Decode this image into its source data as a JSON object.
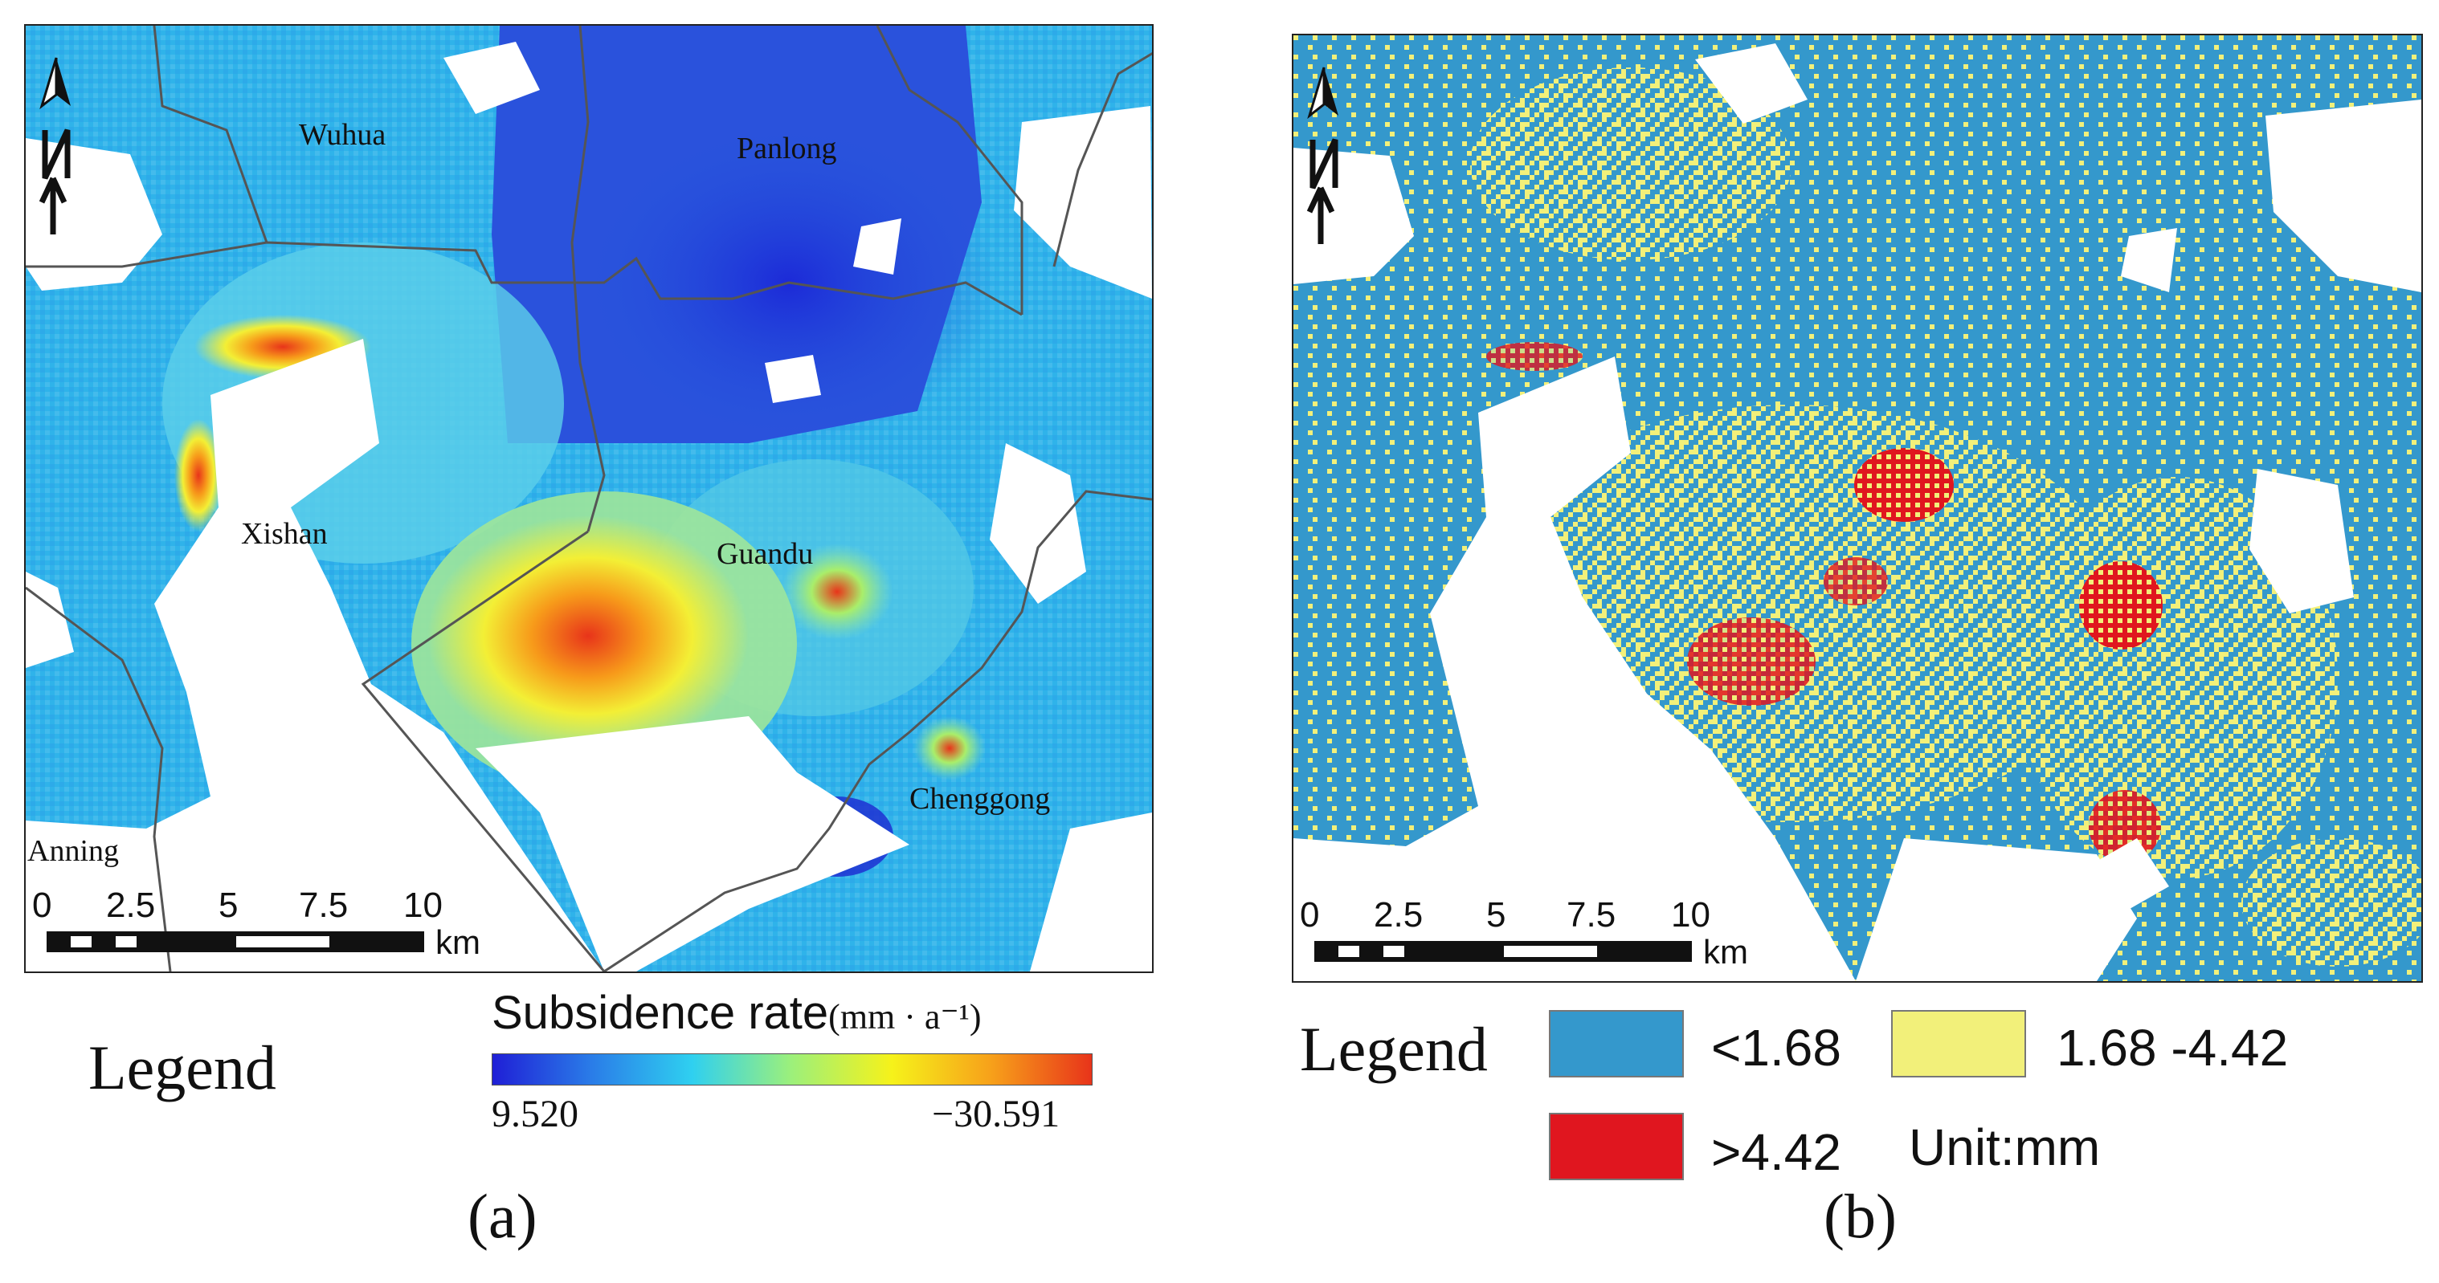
{
  "panel_a": {
    "caption": "(a)",
    "districts": [
      "Wuhua",
      "Panlong",
      "Xishan",
      "Guandu",
      "Chenggong",
      "Anning"
    ],
    "scale_ticks": [
      "0",
      "2.5",
      "5",
      "7.5",
      "10"
    ],
    "scale_unit": "km",
    "legend_word": "Legend",
    "colorbar": {
      "title": "Subsidence rate",
      "unit": "(mm · a⁻¹)",
      "min_label": "9.520",
      "max_label": "−30.591",
      "colors": [
        "#1f1fd6",
        "#2a7de8",
        "#2fd0f0",
        "#9df07a",
        "#f6f21a",
        "#f7a01a",
        "#e8341a"
      ]
    }
  },
  "panel_b": {
    "caption": "(b)",
    "scale_ticks": [
      "0",
      "2.5",
      "5",
      "7.5",
      "10"
    ],
    "scale_unit": "km",
    "legend_word": "Legend",
    "classes": [
      {
        "label": "<1.68",
        "color": "#3498cc"
      },
      {
        "label": "1.68 -4.42",
        "color": "#f2f07a"
      },
      {
        "label": ">4.42",
        "color": "#e0161f"
      }
    ],
    "unit_note": "Unit:mm"
  }
}
